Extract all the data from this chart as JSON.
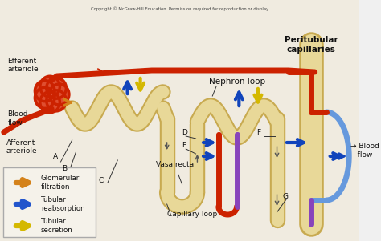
{
  "title": "Copyright © McGraw-Hill Education. Permission required for reproduction or display.",
  "bg_color": "#f0ebe0",
  "white_bg": "#f0f0f0",
  "legend_items": [
    {
      "label": "Glomerular\nfiltration",
      "color": "#d4821a"
    },
    {
      "label": "Tubular\nreabsorption",
      "color": "#2255cc"
    },
    {
      "label": "Tubular\nsecretion",
      "color": "#d4b800"
    }
  ],
  "tubule_color": "#e8d898",
  "tubule_outline": "#c8aa50",
  "blood_color": "#cc2200",
  "vein_color": "#8844bb",
  "blue_vessel": "#6699dd",
  "arrow_blue": "#1144bb",
  "arrow_yellow": "#d4b800",
  "arrow_orange": "#d4821a",
  "text_color": "#111111"
}
